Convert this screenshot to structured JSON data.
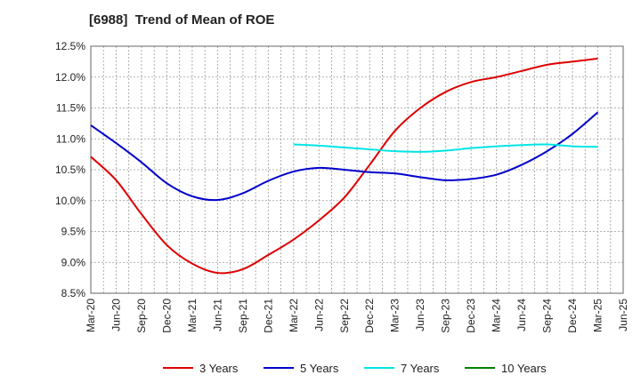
{
  "chart_data": {
    "type": "line",
    "title": "[6988]  Trend of Mean of ROE",
    "x_ticks": [
      "Mar-20",
      "Jun-20",
      "Sep-20",
      "Dec-20",
      "Mar-21",
      "Jun-21",
      "Sep-21",
      "Dec-21",
      "Mar-22",
      "Jun-22",
      "Sep-22",
      "Dec-22",
      "Mar-23",
      "Jun-23",
      "Sep-23",
      "Dec-23",
      "Mar-24",
      "Jun-24",
      "Sep-24",
      "Dec-24",
      "Mar-25",
      "Jun-25"
    ],
    "y_ticks": [
      "8.5%",
      "9.0%",
      "9.5%",
      "10.0%",
      "10.5%",
      "11.0%",
      "11.5%",
      "12.0%",
      "12.5%"
    ],
    "ylim": [
      8.5,
      12.5
    ],
    "grid": true,
    "legend_position": "bottom",
    "series": [
      {
        "name": "3 Years",
        "color": "#dd0000",
        "x": [
          "Mar-20",
          "Jun-20",
          "Sep-20",
          "Dec-20",
          "Mar-21",
          "Jun-21",
          "Sep-21",
          "Dec-21",
          "Mar-22",
          "Jun-22",
          "Sep-22",
          "Dec-22",
          "Mar-23",
          "Jun-23",
          "Sep-23",
          "Dec-23",
          "Mar-24",
          "Jun-24",
          "Sep-24",
          "Dec-24",
          "Mar-25"
        ],
        "values": [
          10.71,
          10.33,
          9.78,
          9.28,
          8.98,
          8.83,
          8.89,
          9.12,
          9.37,
          9.68,
          10.05,
          10.58,
          11.13,
          11.5,
          11.76,
          11.92,
          12.0,
          12.1,
          12.2,
          12.25,
          12.3
        ]
      },
      {
        "name": "5 Years",
        "color": "#0000cc",
        "x": [
          "Mar-20",
          "Jun-20",
          "Sep-20",
          "Dec-20",
          "Mar-21",
          "Jun-21",
          "Sep-21",
          "Dec-21",
          "Mar-22",
          "Jun-22",
          "Sep-22",
          "Dec-22",
          "Mar-23",
          "Jun-23",
          "Sep-23",
          "Dec-23",
          "Mar-24",
          "Jun-24",
          "Sep-24",
          "Dec-24",
          "Mar-25"
        ],
        "values": [
          11.22,
          10.93,
          10.62,
          10.28,
          10.07,
          10.01,
          10.12,
          10.32,
          10.47,
          10.53,
          10.5,
          10.46,
          10.44,
          10.38,
          10.33,
          10.35,
          10.42,
          10.58,
          10.8,
          11.08,
          11.43
        ]
      },
      {
        "name": "7 Years",
        "color": "#00e5e5",
        "x": [
          "Mar-22",
          "Jun-22",
          "Sep-22",
          "Dec-22",
          "Mar-23",
          "Jun-23",
          "Sep-23",
          "Dec-23",
          "Mar-24",
          "Jun-24",
          "Sep-24",
          "Dec-24",
          "Mar-25"
        ],
        "values": [
          10.91,
          10.89,
          10.86,
          10.83,
          10.8,
          10.79,
          10.81,
          10.85,
          10.88,
          10.9,
          10.91,
          10.88,
          10.87
        ]
      },
      {
        "name": "10 Years",
        "color": "#008000",
        "x": [],
        "values": []
      }
    ]
  }
}
